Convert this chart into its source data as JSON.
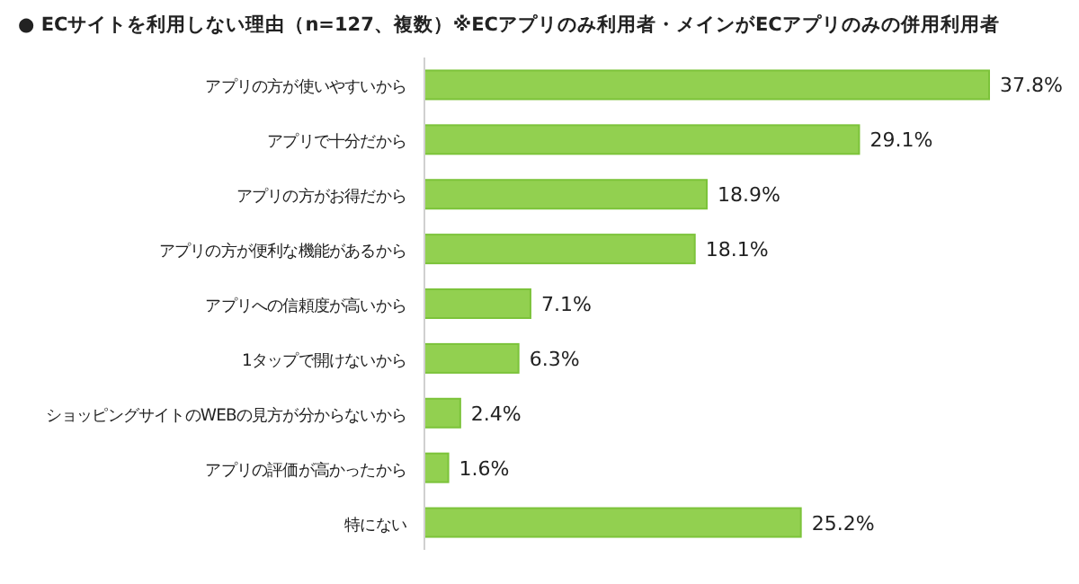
{
  "chart_data": {
    "type": "bar",
    "orientation": "horizontal",
    "title": "●  ECサイトを利用しない理由（n=127、複数）※ECアプリのみ利用者・メインがECアプリのみの併用利用者",
    "categories": [
      "アプリの方が使いやすいから",
      "アプリで十分だから",
      "アプリの方がお得だから",
      "アプリの方が便利な機能があるから",
      "アプリへの信頼度が高いから",
      "1タップで開けないから",
      "ショッピングサイトのWEBの見方が分からないから",
      "アプリの評価が高かったから",
      "特にない"
    ],
    "values": [
      37.8,
      29.1,
      18.9,
      18.1,
      7.1,
      6.3,
      2.4,
      1.6,
      25.2
    ],
    "value_labels": [
      "37.8%",
      "29.1%",
      "18.9%",
      "18.1%",
      "7.1%",
      "6.3%",
      "2.4%",
      "1.6%",
      "25.2%"
    ],
    "color": "#92d050"
  }
}
